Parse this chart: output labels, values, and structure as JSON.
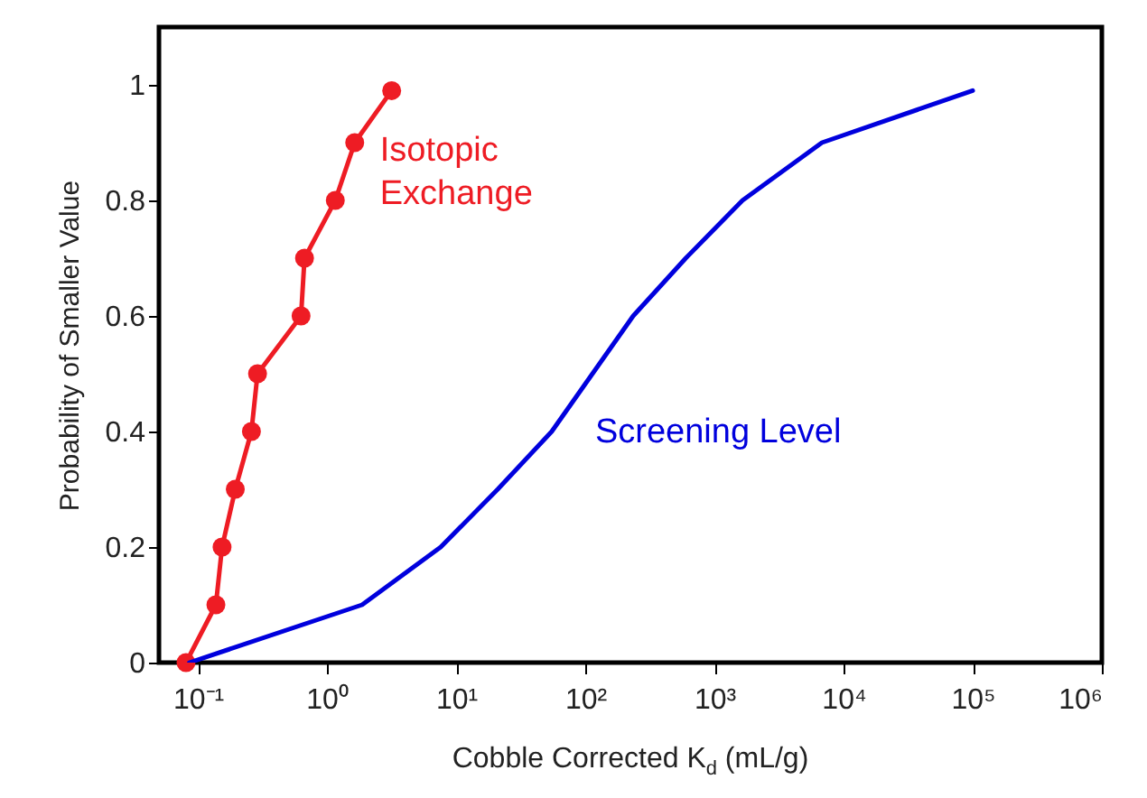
{
  "chart_data": {
    "type": "line",
    "xlabel": "Cobble Corrected K$_{d}$ (mL/g)",
    "ylabel": "Probability of Smaller Value",
    "log": "x",
    "xlim": [
      0.05,
      1000000
    ],
    "xticks": [
      {
        "value": 0.1,
        "label": "10⁻¹"
      },
      {
        "value": 1,
        "label": "10⁰"
      },
      {
        "value": 10,
        "label": "10¹"
      },
      {
        "value": 100,
        "label": "10²"
      },
      {
        "value": 1000,
        "label": "10³"
      },
      {
        "value": 10000,
        "label": "10⁴"
      },
      {
        "value": 100000,
        "label": "10⁵"
      },
      {
        "value": 1000000,
        "label": "10⁶"
      }
    ],
    "ylim": [
      0,
      1.1
    ],
    "yticks": [
      0,
      0.2,
      0.4,
      0.6,
      0.8,
      1
    ],
    "grid": false,
    "series": [
      {
        "name": "Isotopic Exchange",
        "color": "#ee1c24",
        "marker": "circle",
        "x": [
          0.081,
          0.138,
          0.154,
          0.195,
          0.26,
          0.29,
          0.63,
          0.67,
          1.16,
          1.64,
          3.17
        ],
        "values": [
          0,
          0.1,
          0.2,
          0.3,
          0.4,
          0.5,
          0.6,
          0.7,
          0.8,
          0.9,
          0.99
        ]
      },
      {
        "name": "Screening Level",
        "color": "#0000dd",
        "marker": "none",
        "x": [
          0.086,
          1.87,
          7.6,
          21,
          55,
          235,
          600,
          1650,
          6800,
          100000
        ],
        "values": [
          0,
          0.1,
          0.2,
          0.3,
          0.4,
          0.6,
          0.7,
          0.8,
          0.9,
          0.99
        ]
      }
    ]
  }
}
